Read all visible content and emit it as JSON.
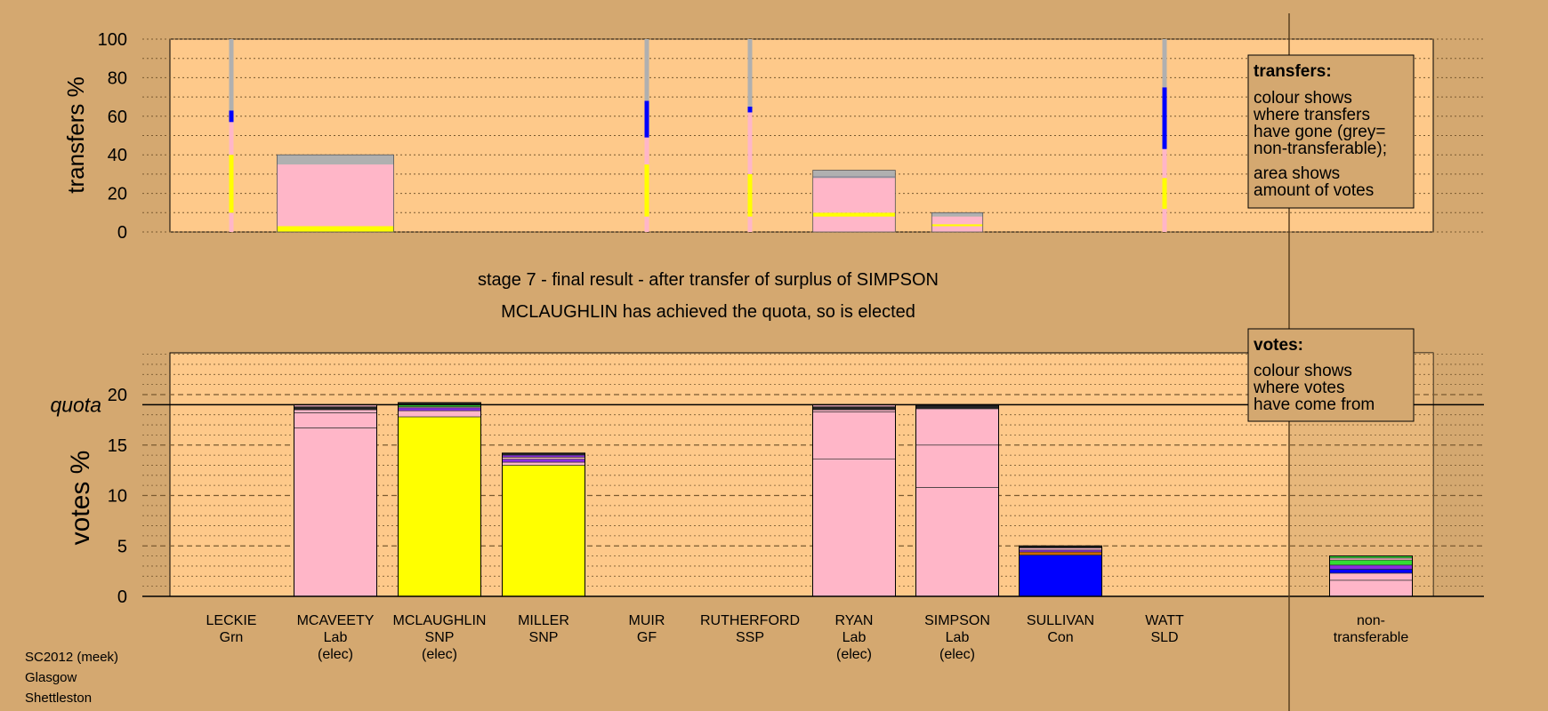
{
  "chart_data": [
    {
      "type": "bar",
      "name": "transfers",
      "ylabel": "transfers %",
      "ylim": [
        0,
        100
      ],
      "yticks": [
        0,
        20,
        40,
        60,
        80,
        100
      ],
      "categories": [
        "LECKIE",
        "MCAVEETY",
        "MCLAUGHLIN",
        "MILLER",
        "MUIR",
        "RUTHERFORD",
        "RYAN",
        "SIMPSON",
        "SULLIVAN",
        "WATT"
      ],
      "bars": [
        {
          "candidate": "LECKIE",
          "width_votes": 0.4,
          "segments": [
            {
              "color": "#ffb6c8",
              "value": 10
            },
            {
              "color": "#ffff00",
              "value": 30
            },
            {
              "color": "#ffb6c8",
              "value": 17
            },
            {
              "color": "#0000ff",
              "value": 6
            },
            {
              "color": "#b0b0b0",
              "value": 37
            }
          ]
        },
        {
          "candidate": "MCAVEETY",
          "width_votes": 16.0,
          "segments": [
            {
              "color": "#ffff00",
              "value": 3
            },
            {
              "color": "#ffb6c8",
              "value": 32
            },
            {
              "color": "#b0b0b0",
              "value": 5
            }
          ]
        },
        {
          "candidate": "MUIR",
          "width_votes": 0.6,
          "segments": [
            {
              "color": "#ffb6c8",
              "value": 8
            },
            {
              "color": "#ffff00",
              "value": 27
            },
            {
              "color": "#ffb6c8",
              "value": 14
            },
            {
              "color": "#0000ff",
              "value": 19
            },
            {
              "color": "#b0b0b0",
              "value": 32
            }
          ]
        },
        {
          "candidate": "RUTHERFORD",
          "width_votes": 0.4,
          "segments": [
            {
              "color": "#ffb6c8",
              "value": 8
            },
            {
              "color": "#ffff00",
              "value": 22
            },
            {
              "color": "#ffb6c8",
              "value": 32
            },
            {
              "color": "#0000ff",
              "value": 3
            },
            {
              "color": "#b0b0b0",
              "value": 35
            }
          ]
        },
        {
          "candidate": "RYAN",
          "width_votes": 11.3,
          "segments": [
            {
              "color": "#ffb6c8",
              "value": 8
            },
            {
              "color": "#ffff00",
              "value": 2
            },
            {
              "color": "#ffb6c8",
              "value": 18
            },
            {
              "color": "#9090a0",
              "value": 1
            },
            {
              "color": "#b0b0b0",
              "value": 3
            }
          ]
        },
        {
          "candidate": "SIMPSON",
          "width_votes": 7.0,
          "segments": [
            {
              "color": "#ffb6c8",
              "value": 3
            },
            {
              "color": "#ffff00",
              "value": 1
            },
            {
              "color": "#ffb6c8",
              "value": 4
            },
            {
              "color": "#b0b0b0",
              "value": 2
            }
          ]
        },
        {
          "candidate": "WATT",
          "width_votes": 0.4,
          "segments": [
            {
              "color": "#ffb6c8",
              "value": 12
            },
            {
              "color": "#ffff00",
              "value": 16
            },
            {
              "color": "#ffb6c8",
              "value": 15
            },
            {
              "color": "#0000ff",
              "value": 32
            },
            {
              "color": "#b0b0b0",
              "value": 25
            }
          ]
        }
      ],
      "legend": {
        "title": "transfers:",
        "lines": [
          "colour shows",
          "where transfers",
          "have gone (grey=",
          "non-transferable);",
          "area shows",
          "amount of votes"
        ]
      }
    },
    {
      "type": "bar",
      "name": "votes",
      "ylabel": "votes %",
      "ylim": [
        0,
        24
      ],
      "yticks": [
        0,
        5,
        10,
        15,
        20
      ],
      "quota_label": "quota",
      "quota": 19.0,
      "categories": [
        "LECKIE",
        "MCAVEETY",
        "MCLAUGHLIN",
        "MILLER",
        "MUIR",
        "RUTHERFORD",
        "RYAN",
        "SIMPSON",
        "SULLIVAN",
        "WATT",
        "non-transferable"
      ],
      "bars": [
        {
          "candidate": "MCAVEETY",
          "segments": [
            {
              "color": "#ffb6c8",
              "value": 16.7
            },
            {
              "color": "#ffb6c8",
              "value": 1.5
            },
            {
              "color": "#ffb6c8",
              "value": 0.3
            },
            {
              "color": "#222222",
              "value": 0.3
            },
            {
              "color": "#ffb6c8",
              "value": 0.2
            }
          ]
        },
        {
          "candidate": "MCLAUGHLIN",
          "segments": [
            {
              "color": "#ffff00",
              "value": 17.8
            },
            {
              "color": "#ffb6c8",
              "value": 0.6
            },
            {
              "color": "#8a2be2",
              "value": 0.3
            },
            {
              "color": "#ffb6c8",
              "value": 0.1
            },
            {
              "color": "#33dd33",
              "value": 0.3
            },
            {
              "color": "#222222",
              "value": 0.1
            }
          ]
        },
        {
          "candidate": "MILLER",
          "segments": [
            {
              "color": "#ffff00",
              "value": 13.0
            },
            {
              "color": "#ffb6c8",
              "value": 0.3
            },
            {
              "color": "#8a2be2",
              "value": 0.3
            },
            {
              "color": "#ffb6c8",
              "value": 0.2
            },
            {
              "color": "#8a2be2",
              "value": 0.2
            },
            {
              "color": "#222222",
              "value": 0.2
            }
          ]
        },
        {
          "candidate": "RYAN",
          "segments": [
            {
              "color": "#ffb6c8",
              "value": 13.6
            },
            {
              "color": "#ffb6c8",
              "value": 4.7
            },
            {
              "color": "#ffb6c8",
              "value": 0.2
            },
            {
              "color": "#222222",
              "value": 0.3
            },
            {
              "color": "#ffb6c8",
              "value": 0.2
            }
          ]
        },
        {
          "candidate": "SIMPSON",
          "segments": [
            {
              "color": "#ffb6c8",
              "value": 10.8
            },
            {
              "color": "#ffb6c8",
              "value": 4.2
            },
            {
              "color": "#ffb6c8",
              "value": 3.6
            },
            {
              "color": "#222222",
              "value": 0.4
            }
          ]
        },
        {
          "candidate": "SULLIVAN",
          "segments": [
            {
              "color": "#0000ff",
              "value": 4.1
            },
            {
              "color": "#cc6600",
              "value": 0.3
            },
            {
              "color": "#8a2be2",
              "value": 0.2
            },
            {
              "color": "#ffb6c8",
              "value": 0.2
            },
            {
              "color": "#222222",
              "value": 0.2
            }
          ]
        },
        {
          "candidate": "non-transferable",
          "segments": [
            {
              "color": "#ffb6c8",
              "value": 1.6
            },
            {
              "color": "#ffb6c8",
              "value": 0.7
            },
            {
              "color": "#0000ff",
              "value": 0.4
            },
            {
              "color": "#8a2be2",
              "value": 0.4
            },
            {
              "color": "#33dd33",
              "value": 0.5
            },
            {
              "color": "#ffb6c8",
              "value": 0.2
            },
            {
              "color": "#33dd33",
              "value": 0.2
            }
          ]
        }
      ],
      "legend": {
        "title": "votes:",
        "lines": [
          "colour shows",
          "where votes",
          "have come from"
        ]
      }
    }
  ],
  "titles": {
    "stage": "stage 7 - final result - after transfer of surplus of SIMPSON",
    "status": "MCLAUGHLIN has achieved the quota, so is elected"
  },
  "candidates": [
    {
      "name": "LECKIE",
      "party": "Grn",
      "note": ""
    },
    {
      "name": "MCAVEETY",
      "party": "Lab",
      "note": "(elec)"
    },
    {
      "name": "MCLAUGHLIN",
      "party": "SNP",
      "note": "(elec)"
    },
    {
      "name": "MILLER",
      "party": "SNP",
      "note": ""
    },
    {
      "name": "MUIR",
      "party": "GF",
      "note": ""
    },
    {
      "name": "RUTHERFORD",
      "party": "SSP",
      "note": ""
    },
    {
      "name": "RYAN",
      "party": "Lab",
      "note": "(elec)"
    },
    {
      "name": "SIMPSON",
      "party": "Lab",
      "note": "(elec)"
    },
    {
      "name": "SULLIVAN",
      "party": "Con",
      "note": ""
    },
    {
      "name": "WATT",
      "party": "SLD",
      "note": ""
    }
  ],
  "nontransferable_label": [
    "non-",
    "transferable"
  ],
  "footer": [
    "SC2012 (meek)",
    "Glasgow",
    "Shettleston"
  ],
  "colors": {
    "background": "#d4a870",
    "panel": "#fec98a"
  }
}
